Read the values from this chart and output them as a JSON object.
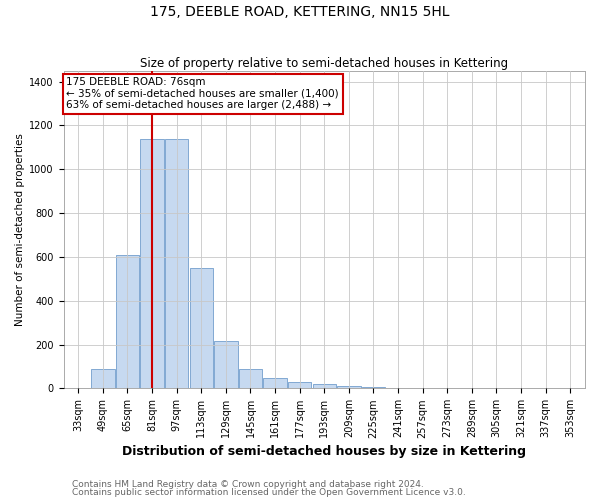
{
  "title": "175, DEEBLE ROAD, KETTERING, NN15 5HL",
  "subtitle": "Size of property relative to semi-detached houses in Kettering",
  "xlabel": "Distribution of semi-detached houses by size in Kettering",
  "ylabel": "Number of semi-detached properties",
  "footnote1": "Contains HM Land Registry data © Crown copyright and database right 2024.",
  "footnote2": "Contains public sector information licensed under the Open Government Licence v3.0.",
  "bar_labels": [
    "33sqm",
    "49sqm",
    "65sqm",
    "81sqm",
    "97sqm",
    "113sqm",
    "129sqm",
    "145sqm",
    "161sqm",
    "177sqm",
    "193sqm",
    "209sqm",
    "225sqm",
    "241sqm",
    "257sqm",
    "273sqm",
    "289sqm",
    "305sqm",
    "321sqm",
    "337sqm",
    "353sqm"
  ],
  "bar_values": [
    0,
    90,
    610,
    1140,
    1140,
    550,
    215,
    90,
    45,
    28,
    18,
    10,
    5,
    0,
    0,
    0,
    0,
    0,
    0,
    0,
    0
  ],
  "bar_color": "#c6d9f0",
  "bar_edge_color": "#5b8ec4",
  "bar_edge_width": 0.5,
  "grid_color": "#c8c8c8",
  "annotation_text": "175 DEEBLE ROAD: 76sqm\n← 35% of semi-detached houses are smaller (1,400)\n63% of semi-detached houses are larger (2,488) →",
  "annotation_box_color": "#ffffff",
  "annotation_box_edge_color": "#cc0000",
  "vline_color": "#cc0000",
  "vline_x": 3.5,
  "ylim": [
    0,
    1450
  ],
  "yticks": [
    0,
    200,
    400,
    600,
    800,
    1000,
    1200,
    1400
  ],
  "background_color": "#ffffff",
  "title_fontsize": 10,
  "subtitle_fontsize": 8.5,
  "xlabel_fontsize": 9,
  "ylabel_fontsize": 7.5,
  "tick_fontsize": 7,
  "annotation_fontsize": 7.5,
  "footnote_fontsize": 6.5
}
